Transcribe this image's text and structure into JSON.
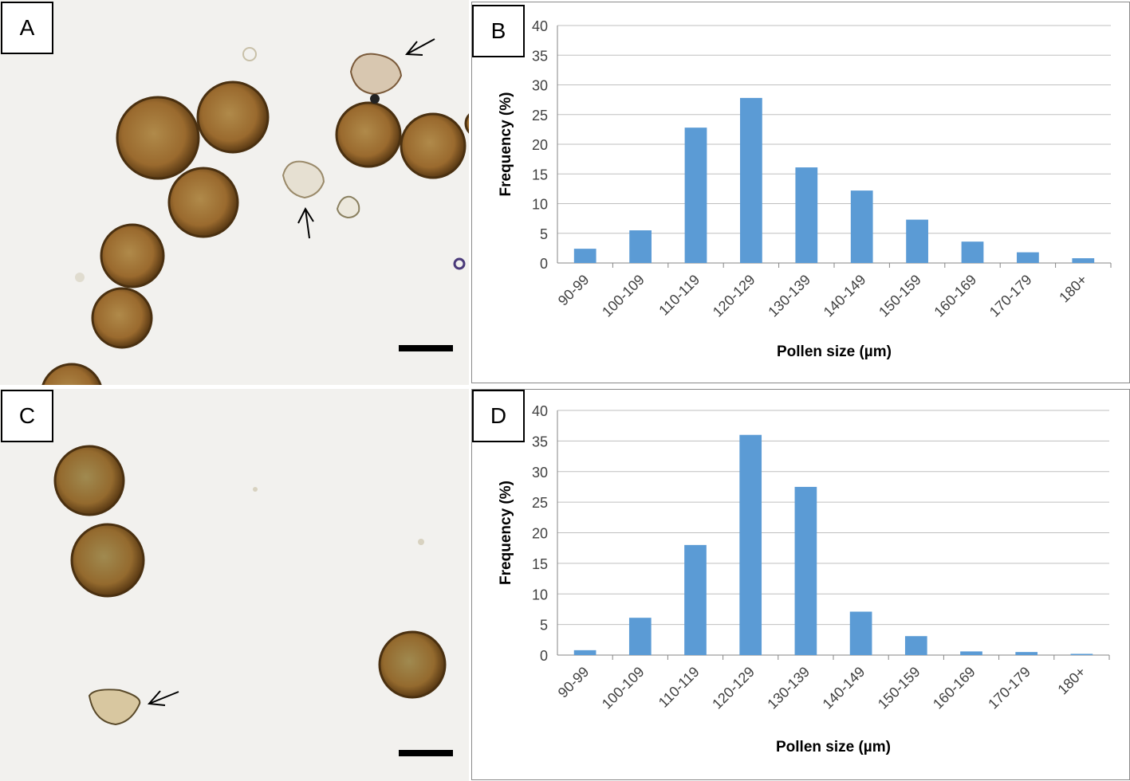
{
  "panels": {
    "a": {
      "label": "A"
    },
    "b": {
      "label": "B"
    },
    "c": {
      "label": "C"
    },
    "d": {
      "label": "D"
    }
  },
  "colors": {
    "bar": "#5b9bd5",
    "grid": "#bfbfbf",
    "axis_text": "#404040",
    "pollen_outer": "#6e4a1c",
    "pollen_inner": "#a9793a",
    "micro_bg": "#f2f1ee"
  },
  "micrographs": {
    "a": {
      "description_icons": [
        "pollen-grain-icon",
        "arrow-icon",
        "scale-bar-icon"
      ]
    },
    "c": {
      "description_icons": [
        "pollen-grain-icon",
        "arrow-icon",
        "scale-bar-icon"
      ]
    }
  },
  "chart_data": [
    {
      "type": "bar",
      "panel": "B",
      "categories": [
        "90-99",
        "100-109",
        "110-119",
        "120-129",
        "130-139",
        "140-149",
        "150-159",
        "160-169",
        "170-179",
        "180+"
      ],
      "values": [
        2.4,
        5.5,
        22.8,
        27.8,
        16.1,
        12.2,
        7.3,
        3.6,
        1.8,
        0.8
      ],
      "title": "",
      "xlabel": "Pollen size (µm)",
      "ylabel": "Frequency (%)",
      "ylim": [
        0,
        40
      ],
      "yticks": [
        0,
        5,
        10,
        15,
        20,
        25,
        30,
        35,
        40
      ],
      "grid": true,
      "legend": "none"
    },
    {
      "type": "bar",
      "panel": "D",
      "categories": [
        "90-99",
        "100-109",
        "110-119",
        "120-129",
        "130-139",
        "140-149",
        "150-159",
        "160-169",
        "170-179",
        "180+"
      ],
      "values": [
        0.8,
        6.1,
        18.0,
        36.0,
        27.5,
        7.1,
        3.1,
        0.6,
        0.5,
        0.2
      ],
      "title": "",
      "xlabel": "Pollen size (µm)",
      "ylabel": "Frequency (%)",
      "ylim": [
        0,
        40
      ],
      "yticks": [
        0,
        5,
        10,
        15,
        20,
        25,
        30,
        35,
        40
      ],
      "grid": true,
      "legend": "none"
    }
  ]
}
